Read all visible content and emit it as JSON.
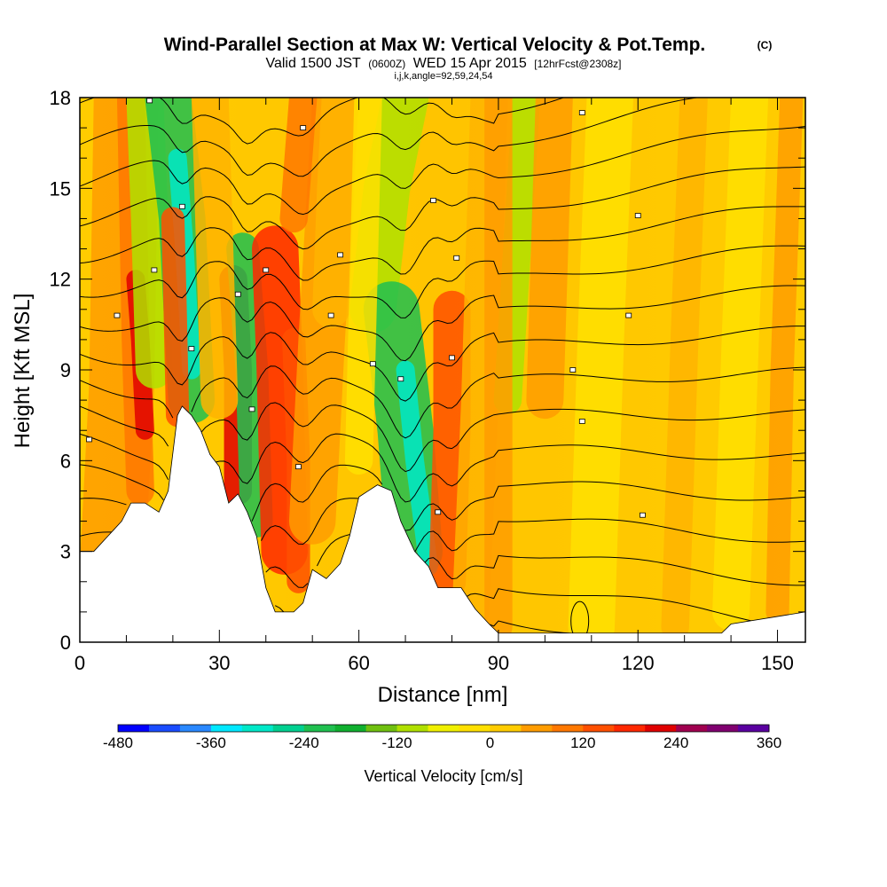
{
  "title": {
    "main": "Wind-Parallel Section at Max W: Vertical Velocity & Pot.Temp.",
    "copyright": "(C)",
    "valid_prefix": "Valid 1500 JST",
    "valid_utc": "(0600Z)",
    "valid_date": "WED 15 Apr 2015",
    "forecast": "[12hrFcst@2308z]",
    "params": "i,j,k,angle=92,59,24,54"
  },
  "chart_data": {
    "type": "heatmap",
    "title": "Wind-Parallel Section at Max W: Vertical Velocity & Pot.Temp.",
    "xlabel": "Distance [nm]",
    "ylabel": "Height [Kft MSL]",
    "xlim": [
      0,
      156
    ],
    "ylim": [
      0,
      18
    ],
    "xticks": [
      0,
      30,
      60,
      90,
      120,
      150
    ],
    "yticks": [
      0,
      3,
      6,
      9,
      12,
      15,
      18
    ],
    "colorbar": {
      "label": "Vertical Velocity [cm/s]",
      "ticks": [
        -480,
        -360,
        -240,
        -120,
        0,
        120,
        240,
        360
      ],
      "range": [
        -480,
        360
      ],
      "step": 40,
      "colors": [
        "#0000ff",
        "#1a4cff",
        "#2a88ff",
        "#00c0ff",
        "#00e8ff",
        "#00e8c8",
        "#00d090",
        "#20c050",
        "#10b030",
        "#30b010",
        "#70c010",
        "#b0e000",
        "#f0f000",
        "#ffe000",
        "#ffcc00",
        "#ffb400",
        "#ff9c00",
        "#ff7800",
        "#ff5000",
        "#ff2800",
        "#e00000",
        "#c00030",
        "#a00050",
        "#800070",
        "#5a00a0"
      ]
    },
    "terrain": [
      [
        0,
        3.0
      ],
      [
        3,
        3.0
      ],
      [
        6,
        3.5
      ],
      [
        9,
        4.0
      ],
      [
        11,
        4.6
      ],
      [
        14,
        4.6
      ],
      [
        17,
        4.3
      ],
      [
        19,
        5.0
      ],
      [
        21,
        7.5
      ],
      [
        22,
        7.8
      ],
      [
        24,
        7.5
      ],
      [
        26,
        7.0
      ],
      [
        28,
        6.2
      ],
      [
        30,
        5.8
      ],
      [
        32,
        4.6
      ],
      [
        34,
        4.9
      ],
      [
        36,
        4.3
      ],
      [
        38,
        3.5
      ],
      [
        40,
        1.8
      ],
      [
        42,
        1.0
      ],
      [
        46,
        1.0
      ],
      [
        48,
        1.3
      ],
      [
        50,
        2.4
      ],
      [
        53,
        2.1
      ],
      [
        56,
        2.6
      ],
      [
        58,
        3.5
      ],
      [
        60,
        4.8
      ],
      [
        62,
        5.0
      ],
      [
        64,
        5.2
      ],
      [
        67,
        5.0
      ],
      [
        69,
        4.0
      ],
      [
        72,
        3.0
      ],
      [
        75,
        2.5
      ],
      [
        77,
        1.8
      ],
      [
        82,
        1.8
      ],
      [
        85,
        1.1
      ],
      [
        88,
        0.6
      ],
      [
        90,
        0.3
      ],
      [
        138,
        0.3
      ],
      [
        140,
        0.6
      ],
      [
        152,
        0.9
      ],
      [
        156,
        1.0
      ]
    ],
    "theta_contour_labels": [
      {
        "x": 15,
        "y": 17.9
      },
      {
        "x": 48,
        "y": 17.0
      },
      {
        "x": 108,
        "y": 17.5
      },
      {
        "x": 22,
        "y": 14.4
      },
      {
        "x": 76,
        "y": 14.6
      },
      {
        "x": 120,
        "y": 14.1
      },
      {
        "x": 16,
        "y": 12.3
      },
      {
        "x": 40,
        "y": 12.3
      },
      {
        "x": 56,
        "y": 12.8
      },
      {
        "x": 81,
        "y": 12.7
      },
      {
        "x": 8,
        "y": 10.8
      },
      {
        "x": 34,
        "y": 11.5
      },
      {
        "x": 54,
        "y": 10.8
      },
      {
        "x": 118,
        "y": 10.8
      },
      {
        "x": 24,
        "y": 9.7
      },
      {
        "x": 63,
        "y": 9.2
      },
      {
        "x": 80,
        "y": 9.4
      },
      {
        "x": 106,
        "y": 9.0
      },
      {
        "x": 37,
        "y": 7.7
      },
      {
        "x": 69,
        "y": 8.7
      },
      {
        "x": 108,
        "y": 7.3
      },
      {
        "x": 2,
        "y": 6.7
      },
      {
        "x": 47,
        "y": 5.8
      },
      {
        "x": 77,
        "y": 4.3
      },
      {
        "x": 121,
        "y": 4.2
      }
    ]
  }
}
